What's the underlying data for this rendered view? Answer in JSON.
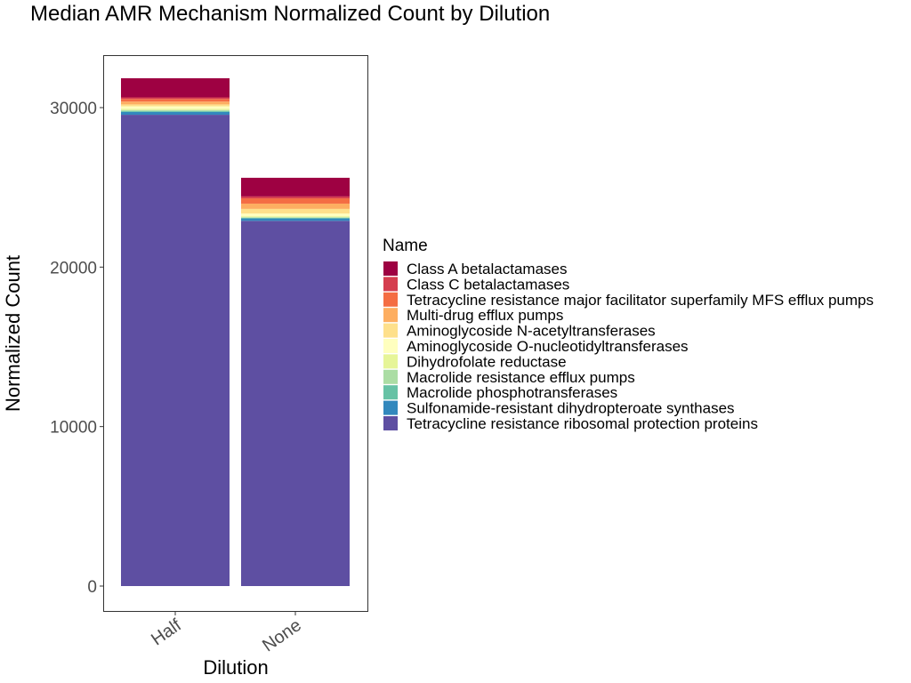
{
  "chart_data": {
    "type": "bar",
    "stacked": true,
    "title": "Median AMR Mechanism Normalized Count by Dilution",
    "xlabel": "Dilution",
    "ylabel": "Normalized Count",
    "categories": [
      "Half",
      "None"
    ],
    "ylim": [
      0,
      33500
    ],
    "yticks": [
      0,
      10000,
      20000,
      30000
    ],
    "ytick_labels": [
      "0",
      "10000",
      "20000",
      "30000"
    ],
    "grid": false,
    "legend": {
      "title": "Name",
      "placement": "right"
    },
    "series": [
      {
        "name": "Tetracycline resistance ribosomal protection proteins",
        "color": "#5E4FA2",
        "values": [
          29550,
          22900
        ]
      },
      {
        "name": "Sulfonamide-resistant dihydropteroate synthases",
        "color": "#3288BD",
        "values": [
          180,
          150
        ]
      },
      {
        "name": "Macrolide phosphotransferases",
        "color": "#66C2A5",
        "values": [
          60,
          40
        ]
      },
      {
        "name": "Macrolide resistance efflux pumps",
        "color": "#ABDDA4",
        "values": [
          60,
          40
        ]
      },
      {
        "name": "Dihydrofolate reductase",
        "color": "#E6F598",
        "values": [
          80,
          60
        ]
      },
      {
        "name": "Aminoglycoside O-nucleotidyltransferases",
        "color": "#FFFFBF",
        "values": [
          150,
          170
        ]
      },
      {
        "name": "Aminoglycoside N-acetyltransferases",
        "color": "#FEE08B",
        "values": [
          120,
          290
        ]
      },
      {
        "name": "Multi-drug efflux pumps",
        "color": "#FDAE61",
        "values": [
          180,
          330
        ]
      },
      {
        "name": "Tetracycline resistance major facilitator superfamily MFS efflux pumps",
        "color": "#F46D43",
        "values": [
          160,
          330
        ]
      },
      {
        "name": "Class C betalactamases",
        "color": "#D53E4F",
        "values": [
          100,
          120
        ]
      },
      {
        "name": "Class A betalactamases",
        "color": "#9E0142",
        "values": [
          1200,
          1170
        ]
      }
    ]
  }
}
